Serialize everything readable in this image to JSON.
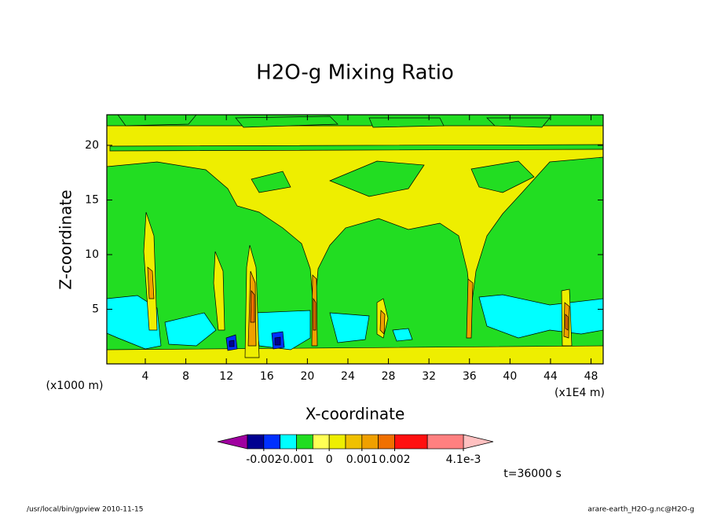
{
  "chart_data": {
    "type": "contour",
    "title": "H2O-g Mixing Ratio",
    "x_label": "X-coordinate",
    "y_label": "Z-coordinate",
    "x_unit": "(x1E4 m)",
    "y_unit": "(x1000 m)",
    "xlim": [
      0.2,
      49.2
    ],
    "xticks": [
      4,
      8,
      12,
      16,
      20,
      24,
      28,
      32,
      36,
      40,
      44,
      48
    ],
    "ylim": [
      0,
      22.8
    ],
    "yticks": [
      5,
      10,
      15,
      20
    ],
    "colorbar": {
      "bounds": [
        -0.0025,
        -0.002,
        -0.0015,
        -0.001,
        -0.0005,
        0,
        0.0005,
        0.001,
        0.0015,
        0.002,
        0.003,
        0.0041
      ],
      "colors": [
        "#000090",
        "#0030ff",
        "#00ffff",
        "#22dd22",
        "#ffff55",
        "#eeee00",
        "#f0c000",
        "#f0a000",
        "#f07000",
        "#ff1010",
        "#ff8080"
      ],
      "under_color": "#a000a0",
      "over_color": "#ffc0c0",
      "ticks": [
        -0.002,
        -0.001,
        0,
        0.001,
        0.002,
        {
          "value": 0.0041,
          "label": "4.1e-3"
        }
      ]
    },
    "time_label": "t=36000 s",
    "footer_left": "/usr/local/bin/gpview  2010-11-15",
    "footer_right": "arare-earth_H2O-g.nc@H2O-g"
  }
}
